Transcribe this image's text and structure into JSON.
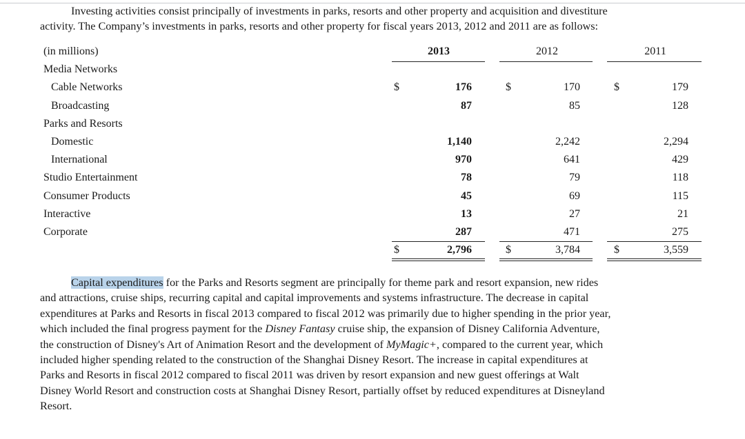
{
  "intro": {
    "line1": "Investing activities consist principally of investments in parks, resorts and other property and acquisition and divestiture",
    "line2": "activity. The Company’s investments in parks, resorts and other property for fiscal years 2013, 2012 and 2011 are as follows:"
  },
  "table": {
    "units": "(in millions)",
    "years": [
      "2013",
      "2012",
      "2011"
    ],
    "currency": "$",
    "rows": [
      {
        "label": "Media Networks",
        "v2013": "",
        "v2012": "",
        "v2011": ""
      },
      {
        "label": "Cable Networks",
        "v2013": "176",
        "v2012": "170",
        "v2011": "179"
      },
      {
        "label": "Broadcasting",
        "v2013": "87",
        "v2012": "85",
        "v2011": "128"
      },
      {
        "label": "Parks and Resorts",
        "v2013": "",
        "v2012": "",
        "v2011": ""
      },
      {
        "label": "Domestic",
        "v2013": "1,140",
        "v2012": "2,242",
        "v2011": "2,294"
      },
      {
        "label": "International",
        "v2013": "970",
        "v2012": "641",
        "v2011": "429"
      },
      {
        "label": "Studio Entertainment",
        "v2013": "78",
        "v2012": "79",
        "v2011": "118"
      },
      {
        "label": "Consumer Products",
        "v2013": "45",
        "v2012": "69",
        "v2011": "115"
      },
      {
        "label": "Interactive",
        "v2013": "13",
        "v2012": "27",
        "v2011": "21"
      },
      {
        "label": "Corporate",
        "v2013": "287",
        "v2012": "471",
        "v2011": "275"
      }
    ],
    "total": {
      "v2013": "2,796",
      "v2012": "3,784",
      "v2011": "3,559"
    }
  },
  "body": {
    "highlight": "Capital expenditures",
    "l1_rest": " for the Parks and Resorts segment are principally for theme park and resort expansion, new rides",
    "l2": "and attractions, cruise ships, recurring capital and capital improvements and systems infrastructure. The decrease in capital",
    "l3": "expenditures at Parks and Resorts in fiscal 2013 compared to fiscal 2012 was primarily due to higher spending in the prior year,",
    "l4_a": "which included the final progress payment for the ",
    "l4_em": "Disney Fantasy",
    "l4_b": " cruise ship, the expansion of Disney California Adventure,",
    "l5_a": "the construction of Disney's Art of Animation Resort and the development of ",
    "l5_em": "MyMagic+",
    "l5_b": ", compared to the current year, which",
    "l6": "included higher spending related to the construction of the Shanghai Disney Resort. The increase in capital expenditures at",
    "l7": "Parks and Resorts in fiscal 2012 compared to fiscal 2011 was driven by resort expansion and new guest offerings at Walt",
    "l8": "Disney World Resort and construction costs at Shanghai Disney Resort, partially offset by reduced expenditures at Disneyland",
    "l9": "Resort."
  }
}
